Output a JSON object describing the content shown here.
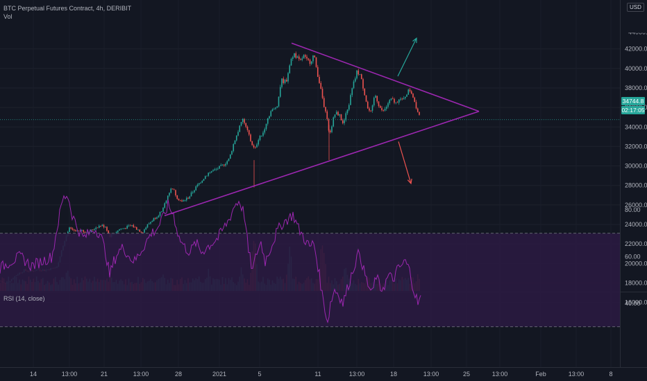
{
  "header": {
    "symbol_line": "BTC Perpetual Futures Contract, 4h, DERIBIT",
    "volume_label": "Vol",
    "currency": "USD"
  },
  "rsi_panel": {
    "label": "RSI (14, close)"
  },
  "price_tags": {
    "last_price": "34744.8",
    "countdown": "02:17:05"
  },
  "colors": {
    "up": "#26a69a",
    "down": "#ef5350",
    "pattern": "#9c27b0",
    "rsi": "#9c27b0",
    "rsi_band": "#2a1a40"
  },
  "chart_data": [
    {
      "type": "candlestick",
      "title": "",
      "ylim": [
        15000,
        44000
      ],
      "y_ticks": [
        16000,
        18000,
        20000,
        22000,
        24000,
        26000,
        28000,
        30000,
        32000,
        34000,
        36000,
        38000,
        40000,
        42000
      ],
      "y_tick_labels": [
        "16000.00",
        "18000.00",
        "20000.00",
        "22000.00",
        "24000.00",
        "26000.00",
        "28000.00",
        "30000.00",
        "32000.00",
        "34000.00",
        "36000.00",
        "38000.00",
        "40000.00",
        "42000.00"
      ],
      "x_tick_labels": [
        "14",
        "13:00",
        "21",
        "13:00",
        "28",
        "2021",
        "5",
        "11",
        "13:00",
        "18",
        "13:00",
        "25",
        "13:00",
        "Feb",
        "13:00",
        "8"
      ],
      "last_price": 34744.8,
      "price_path": [
        [
          0,
          18200
        ],
        [
          8,
          17900
        ],
        [
          15,
          18300
        ],
        [
          25,
          18900
        ],
        [
          35,
          19300
        ],
        [
          45,
          19200
        ],
        [
          55,
          19400
        ],
        [
          65,
          19300
        ],
        [
          75,
          19500
        ],
        [
          82,
          19600
        ],
        [
          88,
          21200
        ],
        [
          95,
          22600
        ],
        [
          100,
          23600
        ],
        [
          108,
          23400
        ],
        [
          118,
          23300
        ],
        [
          128,
          23200
        ],
        [
          138,
          23700
        ],
        [
          145,
          23900
        ],
        [
          152,
          23800
        ],
        [
          158,
          22800
        ],
        [
          165,
          23100
        ],
        [
          172,
          23500
        ],
        [
          182,
          23700
        ],
        [
          190,
          23900
        ],
        [
          198,
          23500
        ],
        [
          205,
          23200
        ],
        [
          212,
          23900
        ],
        [
          220,
          24500
        ],
        [
          228,
          25000
        ],
        [
          235,
          25600
        ],
        [
          242,
          27100
        ],
        [
          248,
          27800
        ],
        [
          255,
          26800
        ],
        [
          262,
          26300
        ],
        [
          272,
          26800
        ],
        [
          280,
          27600
        ],
        [
          290,
          28500
        ],
        [
          300,
          29300
        ],
        [
          310,
          29600
        ],
        [
          320,
          30000
        ],
        [
          330,
          30700
        ],
        [
          337,
          32400
        ],
        [
          343,
          33600
        ],
        [
          350,
          34800
        ],
        [
          356,
          33600
        ],
        [
          362,
          32400
        ],
        [
          367,
          31600
        ],
        [
          372,
          32800
        ],
        [
          378,
          33200
        ],
        [
          384,
          34600
        ],
        [
          390,
          35600
        ],
        [
          395,
          35800
        ],
        [
          400,
          36400
        ],
        [
          405,
          38800
        ],
        [
          412,
          38600
        ],
        [
          418,
          40600
        ],
        [
          423,
          41600
        ],
        [
          428,
          41100
        ],
        [
          432,
          40600
        ],
        [
          437,
          41300
        ],
        [
          442,
          40800
        ],
        [
          447,
          40700
        ],
        [
          452,
          41400
        ],
        [
          457,
          39600
        ],
        [
          462,
          38000
        ],
        [
          466,
          36400
        ],
        [
          470,
          35600
        ],
        [
          474,
          33200
        ],
        [
          478,
          34200
        ],
        [
          482,
          35300
        ],
        [
          486,
          35400
        ],
        [
          490,
          35100
        ],
        [
          494,
          34200
        ],
        [
          498,
          35200
        ],
        [
          502,
          36100
        ],
        [
          506,
          37500
        ],
        [
          510,
          38600
        ],
        [
          514,
          39600
        ],
        [
          518,
          39500
        ],
        [
          522,
          38400
        ],
        [
          526,
          37200
        ],
        [
          530,
          35800
        ],
        [
          535,
          35400
        ],
        [
          540,
          37400
        ],
        [
          545,
          36400
        ],
        [
          550,
          35600
        ],
        [
          555,
          35800
        ],
        [
          560,
          36600
        ],
        [
          565,
          36800
        ],
        [
          570,
          36400
        ],
        [
          575,
          37000
        ],
        [
          580,
          36600
        ],
        [
          585,
          37400
        ],
        [
          590,
          37800
        ],
        [
          594,
          37400
        ],
        [
          598,
          36400
        ],
        [
          602,
          35600
        ],
        [
          606,
          34744.8
        ]
      ],
      "triangle_pattern": {
        "upper_line": [
          [
            420,
            42600
          ],
          [
            690,
            35600
          ]
        ],
        "lower_line": [
          [
            237,
            24900
          ],
          [
            690,
            35600
          ]
        ]
      },
      "arrows": [
        {
          "direction": "up",
          "from": [
            573,
            39200
          ],
          "to": [
            600,
            43100
          ]
        },
        {
          "direction": "down",
          "from": [
            574,
            32500
          ],
          "to": [
            592,
            28200
          ]
        }
      ]
    },
    {
      "type": "bar",
      "title": "",
      "series_label": "Vol",
      "description": "Volume histogram along the bottom of the price pane, colored by candle direction; spikes near 5 Jan and 11 Jan.",
      "peaks": [
        [
          97,
          0.35
        ],
        [
          122,
          0.25
        ],
        [
          235,
          0.3
        ],
        [
          300,
          0.32
        ],
        [
          348,
          0.4
        ],
        [
          366,
          1.0
        ],
        [
          417,
          0.75
        ],
        [
          465,
          0.95
        ],
        [
          497,
          0.5
        ],
        [
          602,
          0.27
        ]
      ]
    },
    {
      "type": "line",
      "title": "",
      "series_label": "RSI (14, close)",
      "ylim": [
        30,
        90
      ],
      "y_ticks": [
        40,
        60,
        80
      ],
      "y_tick_labels": [
        "40.00",
        "60.00",
        "80.00"
      ],
      "band": [
        30,
        70
      ],
      "values": [
        [
          0,
          55
        ],
        [
          15,
          58
        ],
        [
          30,
          60
        ],
        [
          45,
          56
        ],
        [
          60,
          58
        ],
        [
          75,
          60
        ],
        [
          82,
          72
        ],
        [
          90,
          84
        ],
        [
          97,
          87
        ],
        [
          104,
          78
        ],
        [
          112,
          72
        ],
        [
          120,
          68
        ],
        [
          128,
          70
        ],
        [
          136,
          72
        ],
        [
          144,
          70
        ],
        [
          152,
          62
        ],
        [
          158,
          52
        ],
        [
          164,
          58
        ],
        [
          170,
          62
        ],
        [
          178,
          64
        ],
        [
          186,
          60
        ],
        [
          194,
          58
        ],
        [
          202,
          62
        ],
        [
          210,
          66
        ],
        [
          218,
          70
        ],
        [
          226,
          72
        ],
        [
          234,
          76
        ],
        [
          242,
          82
        ],
        [
          250,
          78
        ],
        [
          258,
          68
        ],
        [
          266,
          64
        ],
        [
          274,
          62
        ],
        [
          282,
          66
        ],
        [
          290,
          62
        ],
        [
          298,
          64
        ],
        [
          306,
          66
        ],
        [
          314,
          68
        ],
        [
          322,
          72
        ],
        [
          330,
          76
        ],
        [
          338,
          82
        ],
        [
          345,
          84
        ],
        [
          352,
          78
        ],
        [
          358,
          62
        ],
        [
          364,
          54
        ],
        [
          370,
          62
        ],
        [
          376,
          66
        ],
        [
          382,
          58
        ],
        [
          390,
          64
        ],
        [
          398,
          70
        ],
        [
          406,
          74
        ],
        [
          414,
          76
        ],
        [
          422,
          78
        ],
        [
          430,
          72
        ],
        [
          438,
          68
        ],
        [
          446,
          64
        ],
        [
          452,
          66
        ],
        [
          458,
          56
        ],
        [
          464,
          44
        ],
        [
          468,
          38
        ],
        [
          472,
          32
        ],
        [
          476,
          40
        ],
        [
          482,
          46
        ],
        [
          488,
          44
        ],
        [
          494,
          40
        ],
        [
          500,
          46
        ],
        [
          506,
          52
        ],
        [
          512,
          58
        ],
        [
          518,
          62
        ],
        [
          524,
          54
        ],
        [
          530,
          48
        ],
        [
          536,
          44
        ],
        [
          542,
          52
        ],
        [
          548,
          46
        ],
        [
          554,
          48
        ],
        [
          560,
          52
        ],
        [
          566,
          50
        ],
        [
          572,
          54
        ],
        [
          578,
          56
        ],
        [
          584,
          58
        ],
        [
          590,
          54
        ],
        [
          596,
          46
        ],
        [
          602,
          40
        ],
        [
          606,
          42
        ]
      ]
    }
  ]
}
